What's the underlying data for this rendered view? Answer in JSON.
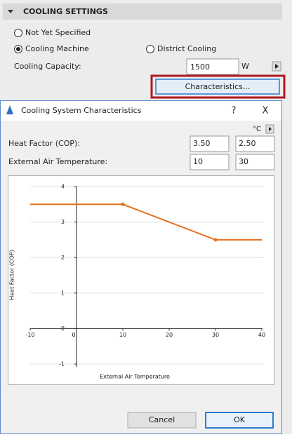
{
  "panel": {
    "title": "COOLING SETTINGS",
    "options": [
      {
        "label": "Not Yet Specified",
        "checked": false
      },
      {
        "label": "Cooling Machine",
        "checked": true
      },
      {
        "label": "District Cooling",
        "checked": false
      }
    ],
    "capacity_label": "Cooling Capacity:",
    "capacity_value": "1500",
    "capacity_unit": "W",
    "button": "Characteristics..."
  },
  "dialog": {
    "title": "Cooling System Characteristics",
    "help": "?",
    "close": "X",
    "unit": "°C",
    "rows": [
      {
        "label": "Heat Factor (COP):",
        "fields": [
          "3.50",
          "2.50"
        ]
      },
      {
        "label": "External Air Temperature:",
        "fields": [
          "10",
          "30"
        ]
      }
    ],
    "cancel": "Cancel",
    "ok": "OK"
  },
  "chart_data": {
    "type": "line",
    "xlabel": "External Air Temperature",
    "ylabel": "Heat Factor (COP)",
    "x": [
      -10,
      10,
      30,
      40
    ],
    "values": [
      3.5,
      3.5,
      2.5,
      2.5
    ],
    "color": "#e8701f",
    "xlim": [
      -10,
      40
    ],
    "xticks": [
      -10,
      0,
      10,
      20,
      30,
      40
    ],
    "ylim": [
      -1,
      4
    ],
    "yticks": [
      -1,
      0,
      1,
      2,
      3,
      4
    ],
    "grid": true
  }
}
